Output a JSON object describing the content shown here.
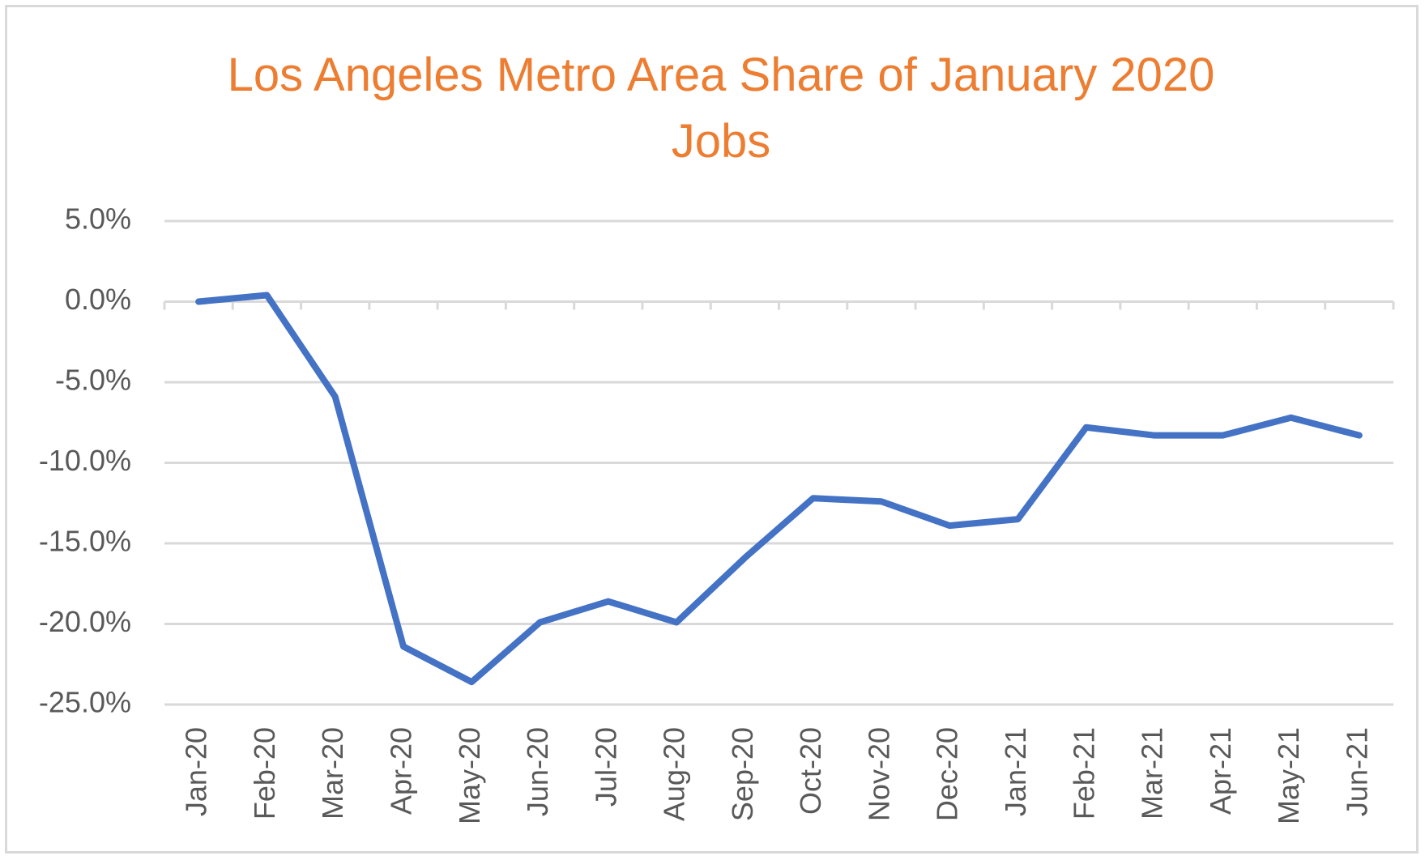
{
  "chart_data": {
    "type": "line",
    "title": "Los Angeles Metro Area Share of January 2020 Jobs",
    "categories": [
      "Jan-20",
      "Feb-20",
      "Mar-20",
      "Apr-20",
      "May-20",
      "Jun-20",
      "Jul-20",
      "Aug-20",
      "Sep-20",
      "Oct-20",
      "Nov-20",
      "Dec-20",
      "Jan-21",
      "Feb-21",
      "Mar-21",
      "Apr-21",
      "May-21",
      "Jun-21"
    ],
    "series": [
      {
        "name": "Share of January 2020 Jobs",
        "color": "#4472c4",
        "values": [
          0,
          0.4,
          -5.9,
          -21.4,
          -23.6,
          -19.9,
          -18.6,
          -19.9,
          -15.9,
          -12.2,
          -12.4,
          -13.9,
          -13.5,
          -7.8,
          -8.3,
          -8.3,
          -7.2,
          -8.3
        ]
      }
    ],
    "ylim": [
      -25,
      5
    ],
    "yticks": [
      {
        "value": -25,
        "label": "-25.0%"
      },
      {
        "value": -20,
        "label": "-20.0%"
      },
      {
        "value": -15,
        "label": "-15.0%"
      },
      {
        "value": -10,
        "label": "-10.0%"
      },
      {
        "value": -5,
        "label": "-5.0%"
      },
      {
        "value": 0,
        "label": "0.0%"
      },
      {
        "value": 5,
        "label": "5.0%"
      }
    ],
    "grid": true
  }
}
